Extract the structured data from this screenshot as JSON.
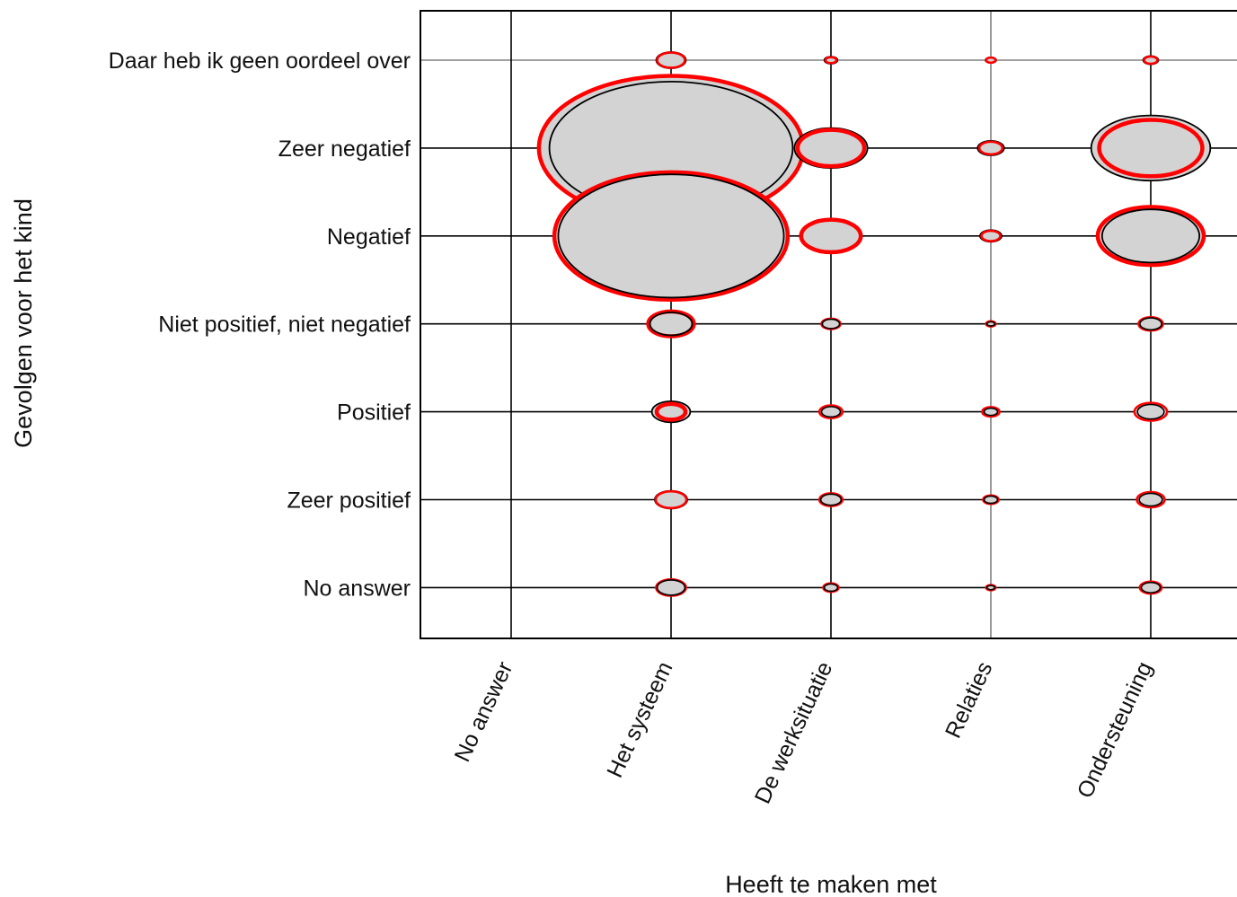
{
  "chart_data": {
    "type": "scatter",
    "xlabel": "Heeft te maken met",
    "ylabel": "Gevolgen voor het kind",
    "x_categories": [
      "No answer",
      "Het systeem",
      "De werksituatie",
      "Relaties",
      "Ondersteuning"
    ],
    "y_categories": [
      "Daar heb ik geen oordeel over",
      "Zeer negatief",
      "Negatief",
      "Niet positief, niet negatief",
      "Positief",
      "Zeer positief",
      "No answer"
    ],
    "grid": true,
    "colors": {
      "fill": "#d3d3d3",
      "outline": "#000000",
      "comparison": "#ff0000"
    },
    "series": [
      {
        "role": "grey-filled-black-outline",
        "points": [
          {
            "x": "Het systeem",
            "y": "Daar heb ik geen oordeel over",
            "value": 1.5
          },
          {
            "x": "De werksituatie",
            "y": "Daar heb ik geen oordeel over",
            "value": 0.3
          },
          {
            "x": "Relaties",
            "y": "Daar heb ik geen oordeel over",
            "value": 0.2
          },
          {
            "x": "Ondersteuning",
            "y": "Daar heb ik geen oordeel over",
            "value": 0.4
          },
          {
            "x": "Het systeem",
            "y": "Zeer negatief",
            "value": 100
          },
          {
            "x": "De werksituatie",
            "y": "Zeer negatief",
            "value": 9
          },
          {
            "x": "Relaties",
            "y": "Zeer negatief",
            "value": 1.2
          },
          {
            "x": "Ondersteuning",
            "y": "Zeer negatief",
            "value": 24
          },
          {
            "x": "Het systeem",
            "y": "Negatief",
            "value": 86
          },
          {
            "x": "De werksituatie",
            "y": "Negatief",
            "value": 6.5
          },
          {
            "x": "Relaties",
            "y": "Negatief",
            "value": 0.8
          },
          {
            "x": "Ondersteuning",
            "y": "Negatief",
            "value": 16
          },
          {
            "x": "Het systeem",
            "y": "Niet positief, niet negatief",
            "value": 3
          },
          {
            "x": "De werksituatie",
            "y": "Niet positief, niet negatief",
            "value": 0.5
          },
          {
            "x": "Relaties",
            "y": "Niet positief, niet negatief",
            "value": 0.1
          },
          {
            "x": "Ondersteuning",
            "y": "Niet positief, niet negatief",
            "value": 0.8
          },
          {
            "x": "Het systeem",
            "y": "Positief",
            "value": 2.5
          },
          {
            "x": "De werksituatie",
            "y": "Positief",
            "value": 0.6
          },
          {
            "x": "Relaties",
            "y": "Positief",
            "value": 0.3
          },
          {
            "x": "Ondersteuning",
            "y": "Positief",
            "value": 1.2
          },
          {
            "x": "Het systeem",
            "y": "Zeer positief",
            "value": 1.8
          },
          {
            "x": "De werksituatie",
            "y": "Zeer positief",
            "value": 0.7
          },
          {
            "x": "Relaties",
            "y": "Zeer positief",
            "value": 0.3
          },
          {
            "x": "Ondersteuning",
            "y": "Zeer positief",
            "value": 0.9
          },
          {
            "x": "Het systeem",
            "y": "No answer",
            "value": 1.3
          },
          {
            "x": "De werksituatie",
            "y": "No answer",
            "value": 0.3
          },
          {
            "x": "Relaties",
            "y": "No answer",
            "value": 0.1
          },
          {
            "x": "Ondersteuning",
            "y": "No answer",
            "value": 0.6
          }
        ]
      },
      {
        "role": "red-outline",
        "points": [
          {
            "x": "Het systeem",
            "y": "Daar heb ik geen oordeel over",
            "value": 1.3
          },
          {
            "x": "De werksituatie",
            "y": "Daar heb ik geen oordeel over",
            "value": 0.2
          },
          {
            "x": "Relaties",
            "y": "Daar heb ik geen oordeel over",
            "value": 0.15
          },
          {
            "x": "Ondersteuning",
            "y": "Daar heb ik geen oordeel over",
            "value": 0.3
          },
          {
            "x": "Het systeem",
            "y": "Zeer negatief",
            "value": 118
          },
          {
            "x": "De werksituatie",
            "y": "Zeer negatief",
            "value": 7.5
          },
          {
            "x": "Relaties",
            "y": "Zeer negatief",
            "value": 0.9
          },
          {
            "x": "Ondersteuning",
            "y": "Zeer negatief",
            "value": 18
          },
          {
            "x": "Het systeem",
            "y": "Negatief",
            "value": 92
          },
          {
            "x": "De werksituatie",
            "y": "Negatief",
            "value": 6
          },
          {
            "x": "Relaties",
            "y": "Negatief",
            "value": 0.6
          },
          {
            "x": "Ondersteuning",
            "y": "Negatief",
            "value": 19
          },
          {
            "x": "Het systeem",
            "y": "Niet positief, niet negatief",
            "value": 3.5
          },
          {
            "x": "De werksituatie",
            "y": "Niet positief, niet negatief",
            "value": 0.6
          },
          {
            "x": "Relaties",
            "y": "Niet positief, niet negatief",
            "value": 0.15
          },
          {
            "x": "Ondersteuning",
            "y": "Niet positief, niet negatief",
            "value": 1
          },
          {
            "x": "Het systeem",
            "y": "Positief",
            "value": 1.4
          },
          {
            "x": "De werksituatie",
            "y": "Positief",
            "value": 0.9
          },
          {
            "x": "Relaties",
            "y": "Positief",
            "value": 0.5
          },
          {
            "x": "Ondersteuning",
            "y": "Positief",
            "value": 1.8
          },
          {
            "x": "Het systeem",
            "y": "Zeer positief",
            "value": 1.6
          },
          {
            "x": "De werksituatie",
            "y": "Zeer positief",
            "value": 0.9
          },
          {
            "x": "Relaties",
            "y": "Zeer positief",
            "value": 0.4
          },
          {
            "x": "Ondersteuning",
            "y": "Zeer positief",
            "value": 1.3
          },
          {
            "x": "Het systeem",
            "y": "No answer",
            "value": 1.5
          },
          {
            "x": "De werksituatie",
            "y": "No answer",
            "value": 0.4
          },
          {
            "x": "Relaties",
            "y": "No answer",
            "value": 0.15
          },
          {
            "x": "Ondersteuning",
            "y": "No answer",
            "value": 0.8
          }
        ]
      }
    ]
  }
}
